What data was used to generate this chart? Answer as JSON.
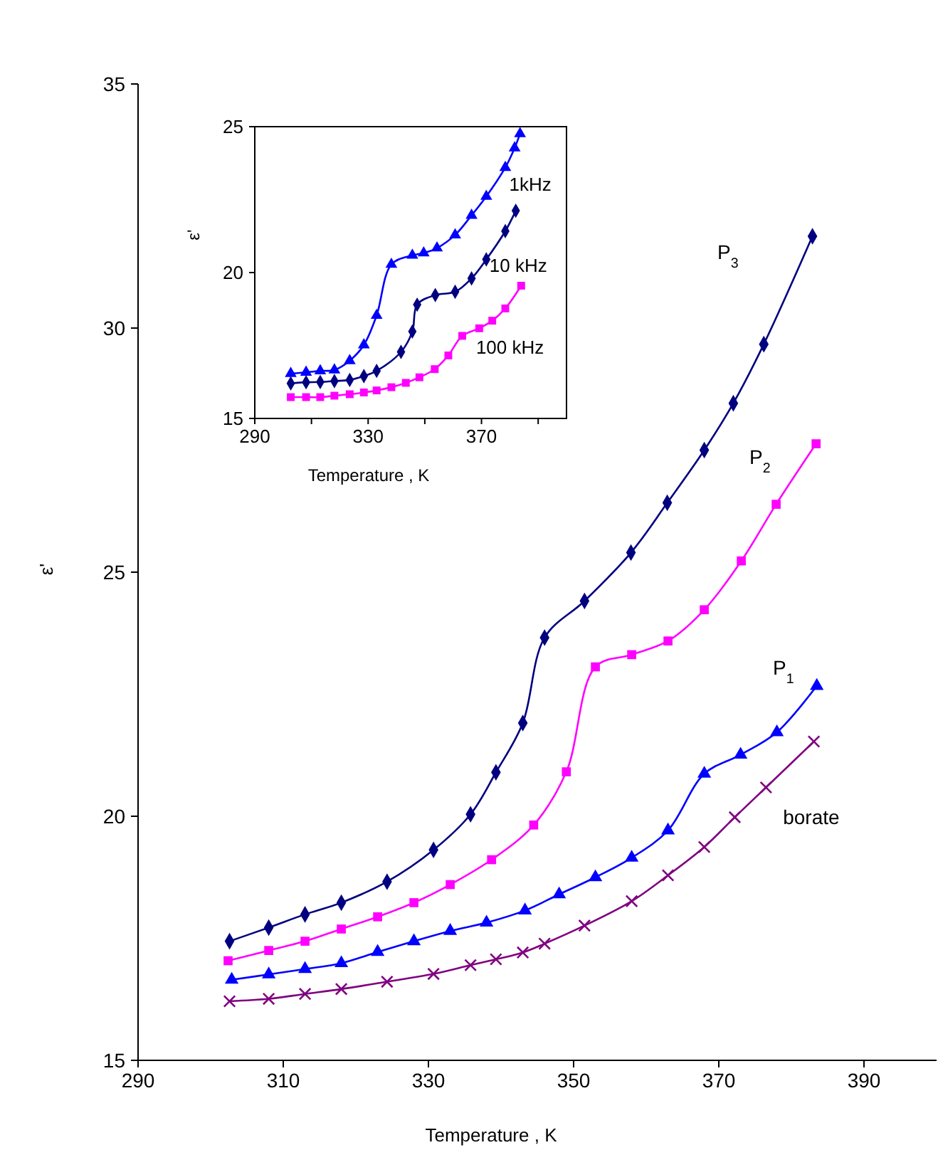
{
  "chart_data": [
    {
      "type": "line",
      "xlabel": "Temperature , K",
      "ylabel": "ε'",
      "xlim": [
        290,
        400
      ],
      "xticks": [
        290,
        310,
        330,
        350,
        370,
        390
      ],
      "ylim": [
        15,
        35
      ],
      "yticks": [
        15,
        20,
        25,
        30,
        35
      ],
      "grid": false,
      "legend": false,
      "line_style": "solid",
      "series": [
        {
          "name": "P$_{3}$",
          "color": "#000080",
          "marker": "diamond",
          "x": [
            302.6,
            308,
            313,
            318,
            324.3,
            330.7,
            335.8,
            339.3,
            343,
            346,
            351.5,
            357.9,
            362.9,
            368,
            372,
            376.2,
            382.9
          ],
          "values": [
            17.44,
            17.72,
            17.99,
            18.23,
            18.66,
            19.31,
            20.04,
            20.9,
            21.91,
            23.66,
            24.41,
            25.4,
            26.42,
            27.5,
            28.46,
            29.67,
            31.88
          ]
        },
        {
          "name": "P$_{2}$",
          "color": "#ff00ff",
          "marker": "square",
          "x": [
            302.4,
            308,
            313,
            318,
            323,
            328,
            333,
            338.7,
            344.5,
            349,
            353,
            358,
            363,
            368,
            373.1,
            377.9,
            383.4
          ],
          "values": [
            17.04,
            17.25,
            17.44,
            17.69,
            17.94,
            18.23,
            18.6,
            19.11,
            19.82,
            20.91,
            23.06,
            23.31,
            23.59,
            24.23,
            25.23,
            26.39,
            27.63
          ]
        },
        {
          "name": "P$_{1}$",
          "color": "#0000ff",
          "marker": "triangle",
          "x": [
            302.9,
            308,
            313,
            318,
            323,
            328,
            333,
            338,
            343.3,
            348,
            353,
            358,
            363,
            368,
            373,
            378,
            383.5
          ],
          "values": [
            16.65,
            16.76,
            16.87,
            16.99,
            17.22,
            17.44,
            17.65,
            17.82,
            18.07,
            18.4,
            18.75,
            19.15,
            19.71,
            20.87,
            21.26,
            21.72,
            22.67
          ]
        },
        {
          "name": "borate",
          "color": "#800080",
          "marker": "cross",
          "x": [
            302.6,
            308,
            313,
            318,
            324.3,
            330.7,
            335.8,
            339.3,
            343,
            346,
            351.5,
            358,
            363,
            368,
            372.2,
            376.5,
            383.1
          ],
          "values": [
            16.21,
            16.26,
            16.36,
            16.46,
            16.61,
            16.77,
            16.95,
            17.07,
            17.21,
            17.39,
            17.76,
            18.26,
            18.79,
            19.37,
            19.98,
            20.59,
            21.53
          ]
        }
      ]
    },
    {
      "type": "line",
      "xlabel": "Temperature , K",
      "ylabel": "ε'",
      "xlim": [
        290,
        400
      ],
      "xticks": [
        290,
        {
          "value": 310,
          "label": null
        },
        330,
        {
          "value": 350,
          "label": null
        },
        370,
        {
          "value": 390,
          "label": null
        }
      ],
      "ylim": [
        15,
        25
      ],
      "yticks": [
        15,
        20,
        25
      ],
      "grid": false,
      "legend": false,
      "line_style": "solid",
      "series": [
        {
          "name": "1kHz",
          "color": "#0000ff",
          "marker": "triangle",
          "x": [
            302.7,
            308.1,
            313.1,
            318.1,
            323.5,
            328.5,
            333,
            338.2,
            345.6,
            349.6,
            354.3,
            360.7,
            366.5,
            371.7,
            378.4,
            381.7,
            383.6
          ],
          "values": [
            16.54,
            16.58,
            16.63,
            16.66,
            16.98,
            17.52,
            18.53,
            20.28,
            20.59,
            20.67,
            20.84,
            21.29,
            21.96,
            22.61,
            23.6,
            24.27,
            24.76
          ]
        },
        {
          "name": "10 kHz",
          "color": "#000080",
          "marker": "diamond",
          "x": [
            302.7,
            308.1,
            313.1,
            318.1,
            323.5,
            328.5,
            333,
            341.6,
            345.6,
            347.3,
            353.7,
            360.7,
            366.5,
            371.7,
            378.4,
            382.1
          ],
          "values": [
            16.2,
            16.24,
            16.25,
            16.28,
            16.32,
            16.45,
            16.63,
            17.28,
            17.98,
            18.9,
            19.23,
            19.34,
            19.8,
            20.45,
            21.42,
            22.12
          ]
        },
        {
          "name": "100 kHz",
          "color": "#ff00ff",
          "marker": "square",
          "x": [
            302.7,
            308.1,
            313.1,
            318.1,
            323.5,
            328.5,
            333,
            338.2,
            343.3,
            348.1,
            353.5,
            358.3,
            363.2,
            369.2,
            373.8,
            378.4,
            384
          ],
          "values": [
            15.73,
            15.73,
            15.73,
            15.78,
            15.83,
            15.89,
            15.96,
            16.07,
            16.22,
            16.41,
            16.69,
            17.16,
            17.83,
            18.09,
            18.35,
            18.77,
            19.55
          ]
        }
      ]
    }
  ]
}
